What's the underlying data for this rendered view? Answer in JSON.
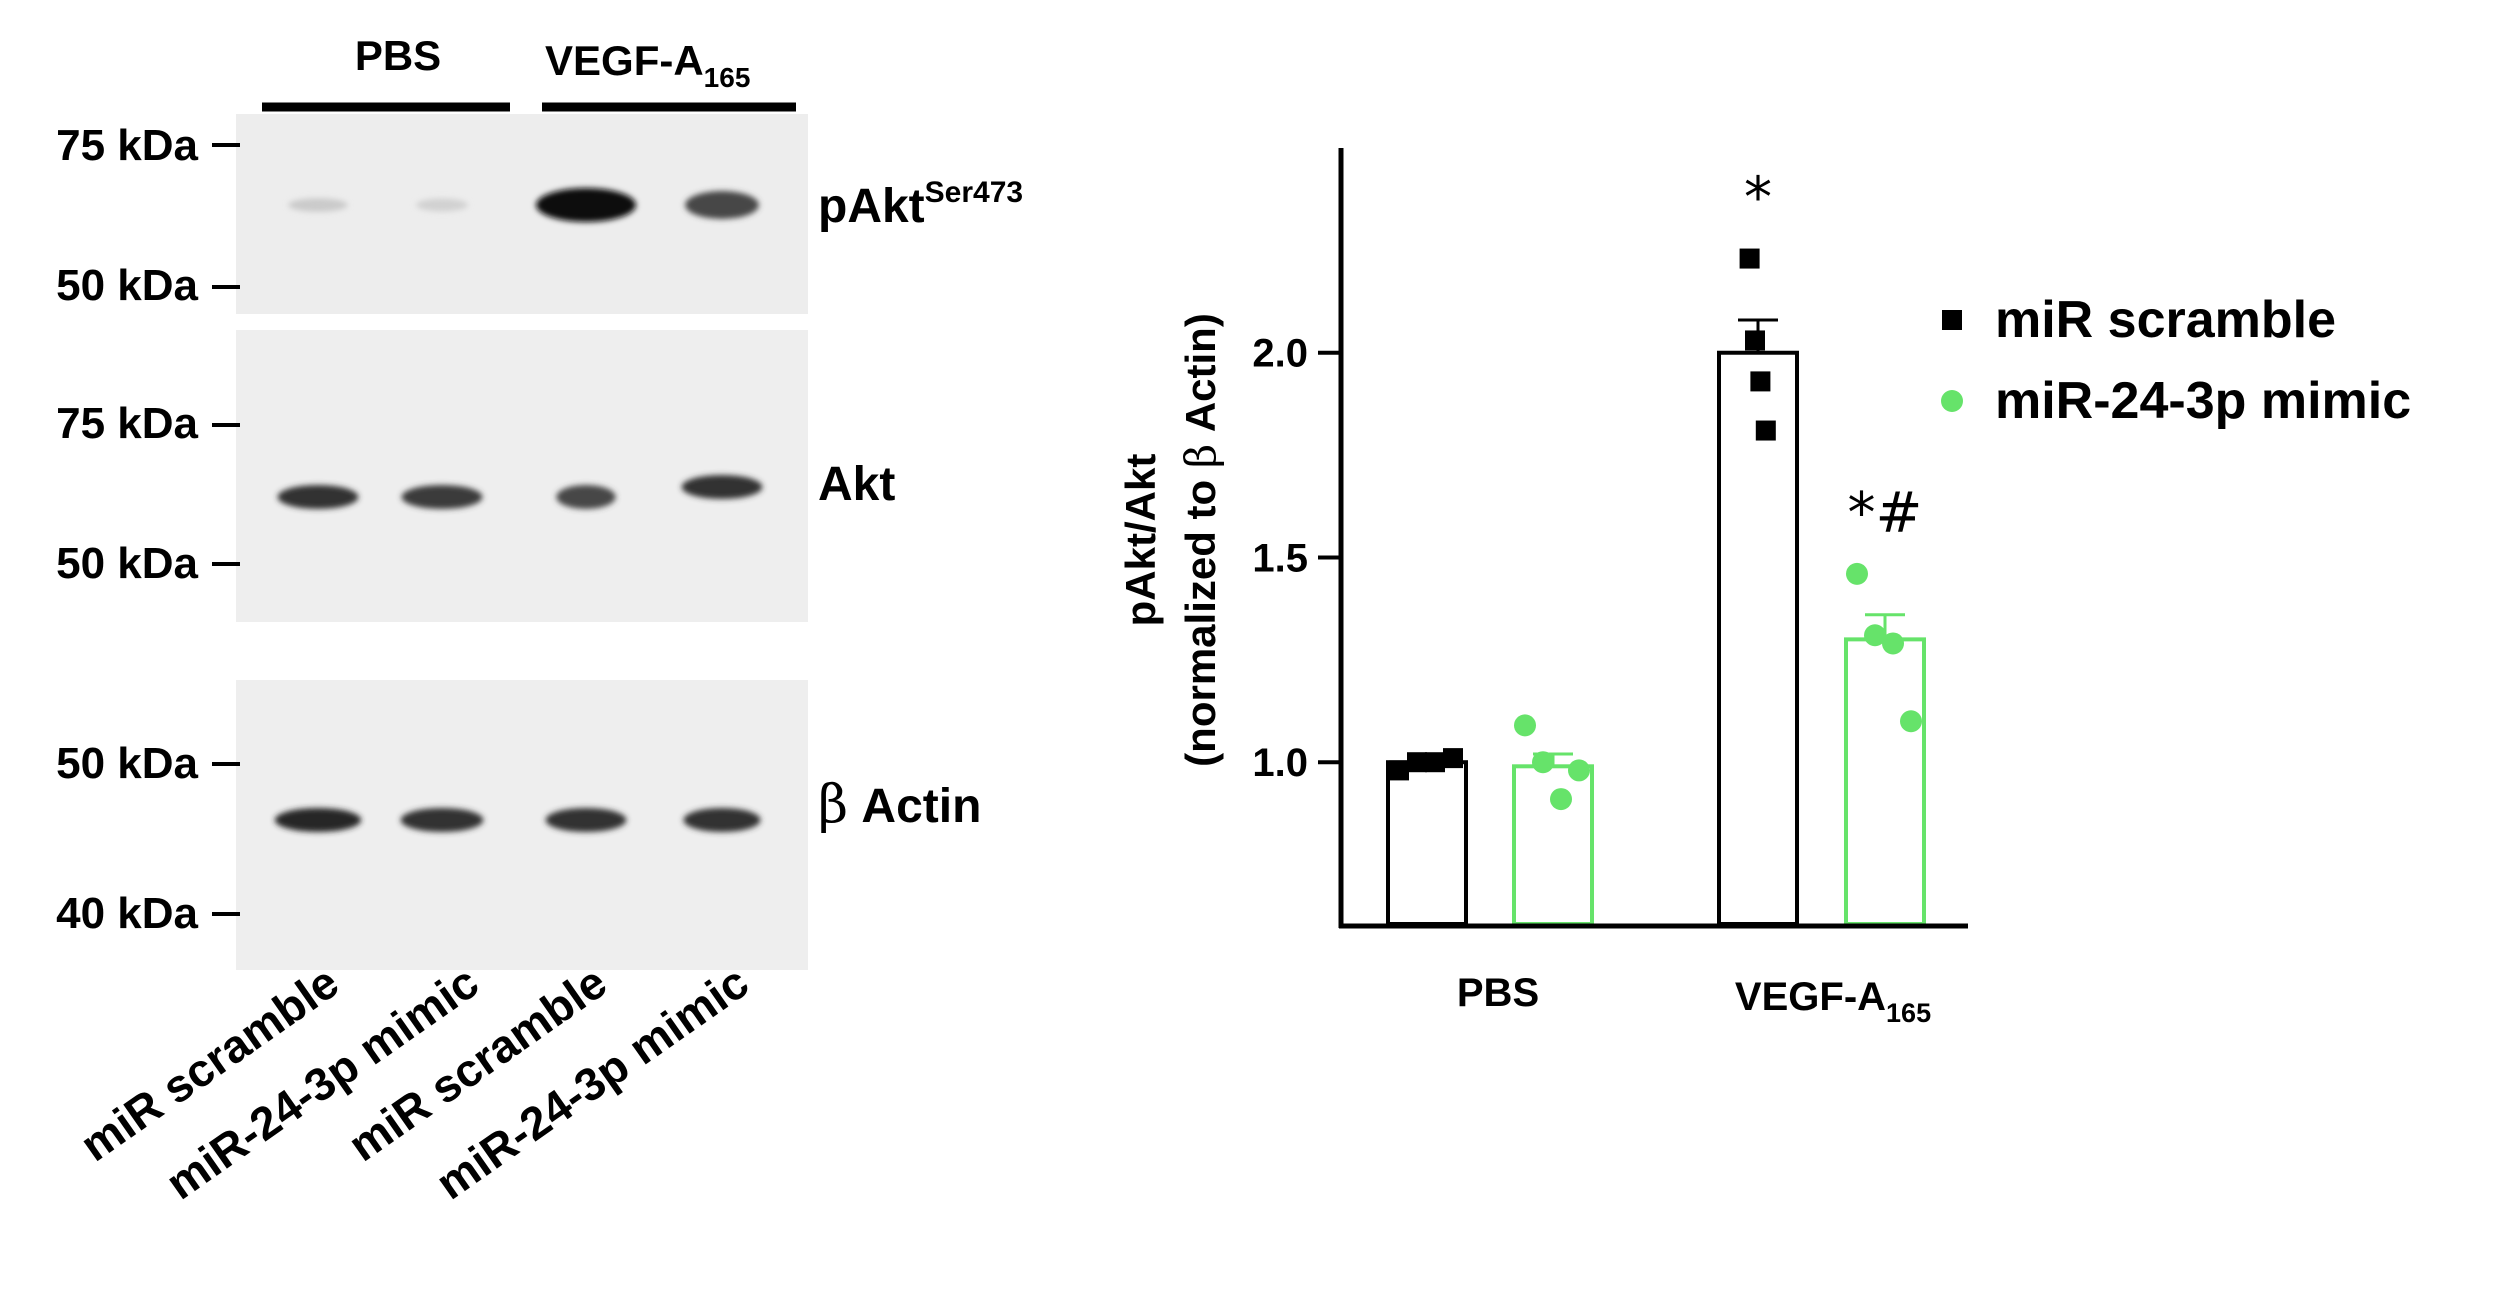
{
  "western_blot": {
    "group_headers": [
      {
        "label": "PBS"
      },
      {
        "label": "VEGF-A",
        "subscript": "165"
      }
    ],
    "panels": [
      {
        "protein": "pAkt",
        "superscript": "Ser473",
        "markers": [
          "75 kDa",
          "50 kDa"
        ],
        "band_intensity": [
          0.15,
          0.12,
          1.0,
          0.75
        ]
      },
      {
        "protein": "Akt",
        "superscript": "",
        "markers": [
          "75 kDa",
          "50 kDa"
        ],
        "band_intensity": [
          0.85,
          0.8,
          0.75,
          0.85
        ]
      },
      {
        "greek": "β",
        "protein": "Actin",
        "superscript": "",
        "markers": [
          "50 kDa",
          "40 kDa"
        ],
        "band_intensity": [
          0.9,
          0.85,
          0.85,
          0.85
        ]
      }
    ],
    "lanes": [
      "miR scramble",
      "miR-24-3p mimic",
      "miR scramble",
      "miR-24-3p mimic"
    ]
  },
  "chart_data": {
    "type": "bar",
    "categories": [
      {
        "label": "PBS",
        "subscript": ""
      },
      {
        "label": "VEGF-A",
        "subscript": "165"
      }
    ],
    "ylabel_line1": "pAkt/Akt",
    "ylabel_line2_prefix": "(normalized to ",
    "ylabel_greek": "β",
    "ylabel_line2_suffix": " Actin)",
    "ylim": [
      0.6,
      2.5
    ],
    "yticks": [
      "1.0",
      "1.5",
      "2.0"
    ],
    "series": [
      {
        "name": "miR scramble",
        "color": "#000000",
        "marker": "square",
        "values": [
          1.0,
          2.0
        ],
        "sem": [
          0.0,
          0.08
        ],
        "points": [
          [
            0.98,
            1.0,
            1.0,
            1.01
          ],
          [
            2.23,
            2.03,
            1.93,
            1.81
          ]
        ],
        "annotations": [
          "",
          "*"
        ]
      },
      {
        "name": "miR-24-3p mimic",
        "color": "#66e36a",
        "marker": "circle",
        "values": [
          0.99,
          1.3
        ],
        "sem": [
          0.03,
          0.06
        ],
        "points": [
          [
            1.09,
            1.0,
            0.91,
            0.98
          ],
          [
            1.46,
            1.31,
            1.29,
            1.1
          ]
        ],
        "annotations": [
          "",
          "*#"
        ]
      }
    ]
  }
}
